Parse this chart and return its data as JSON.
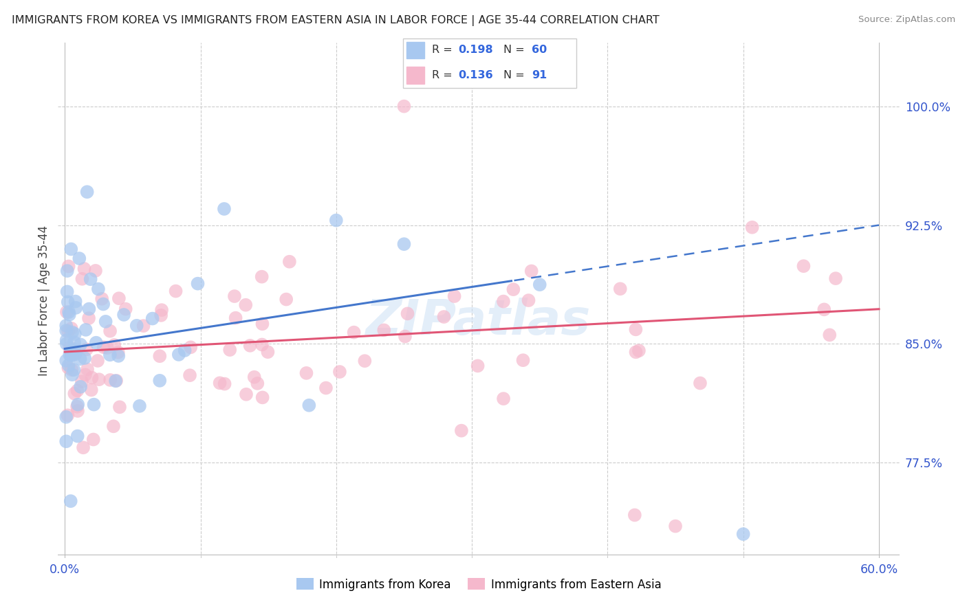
{
  "title": "IMMIGRANTS FROM KOREA VS IMMIGRANTS FROM EASTERN ASIA IN LABOR FORCE | AGE 35-44 CORRELATION CHART",
  "source": "Source: ZipAtlas.com",
  "ylabel": "In Labor Force | Age 35-44",
  "ytick_vals": [
    0.775,
    0.85,
    0.925,
    1.0
  ],
  "xlim": [
    0.0,
    0.6
  ],
  "ylim": [
    0.715,
    1.04
  ],
  "legend1_R": "0.198",
  "legend1_N": "60",
  "legend2_R": "0.136",
  "legend2_N": "91",
  "color_korea": "#a8c8f0",
  "color_eastern": "#f5b8cc",
  "color_korea_line": "#4477cc",
  "color_eastern_line": "#e05575",
  "watermark": "ZIPatlas",
  "korea_line_x0": 0.0,
  "korea_line_y0": 0.847,
  "korea_line_x1": 0.6,
  "korea_line_y1": 0.925,
  "korea_line_solid_end": 0.33,
  "eastern_line_x0": 0.0,
  "eastern_line_y0": 0.845,
  "eastern_line_x1": 0.6,
  "eastern_line_y1": 0.872
}
